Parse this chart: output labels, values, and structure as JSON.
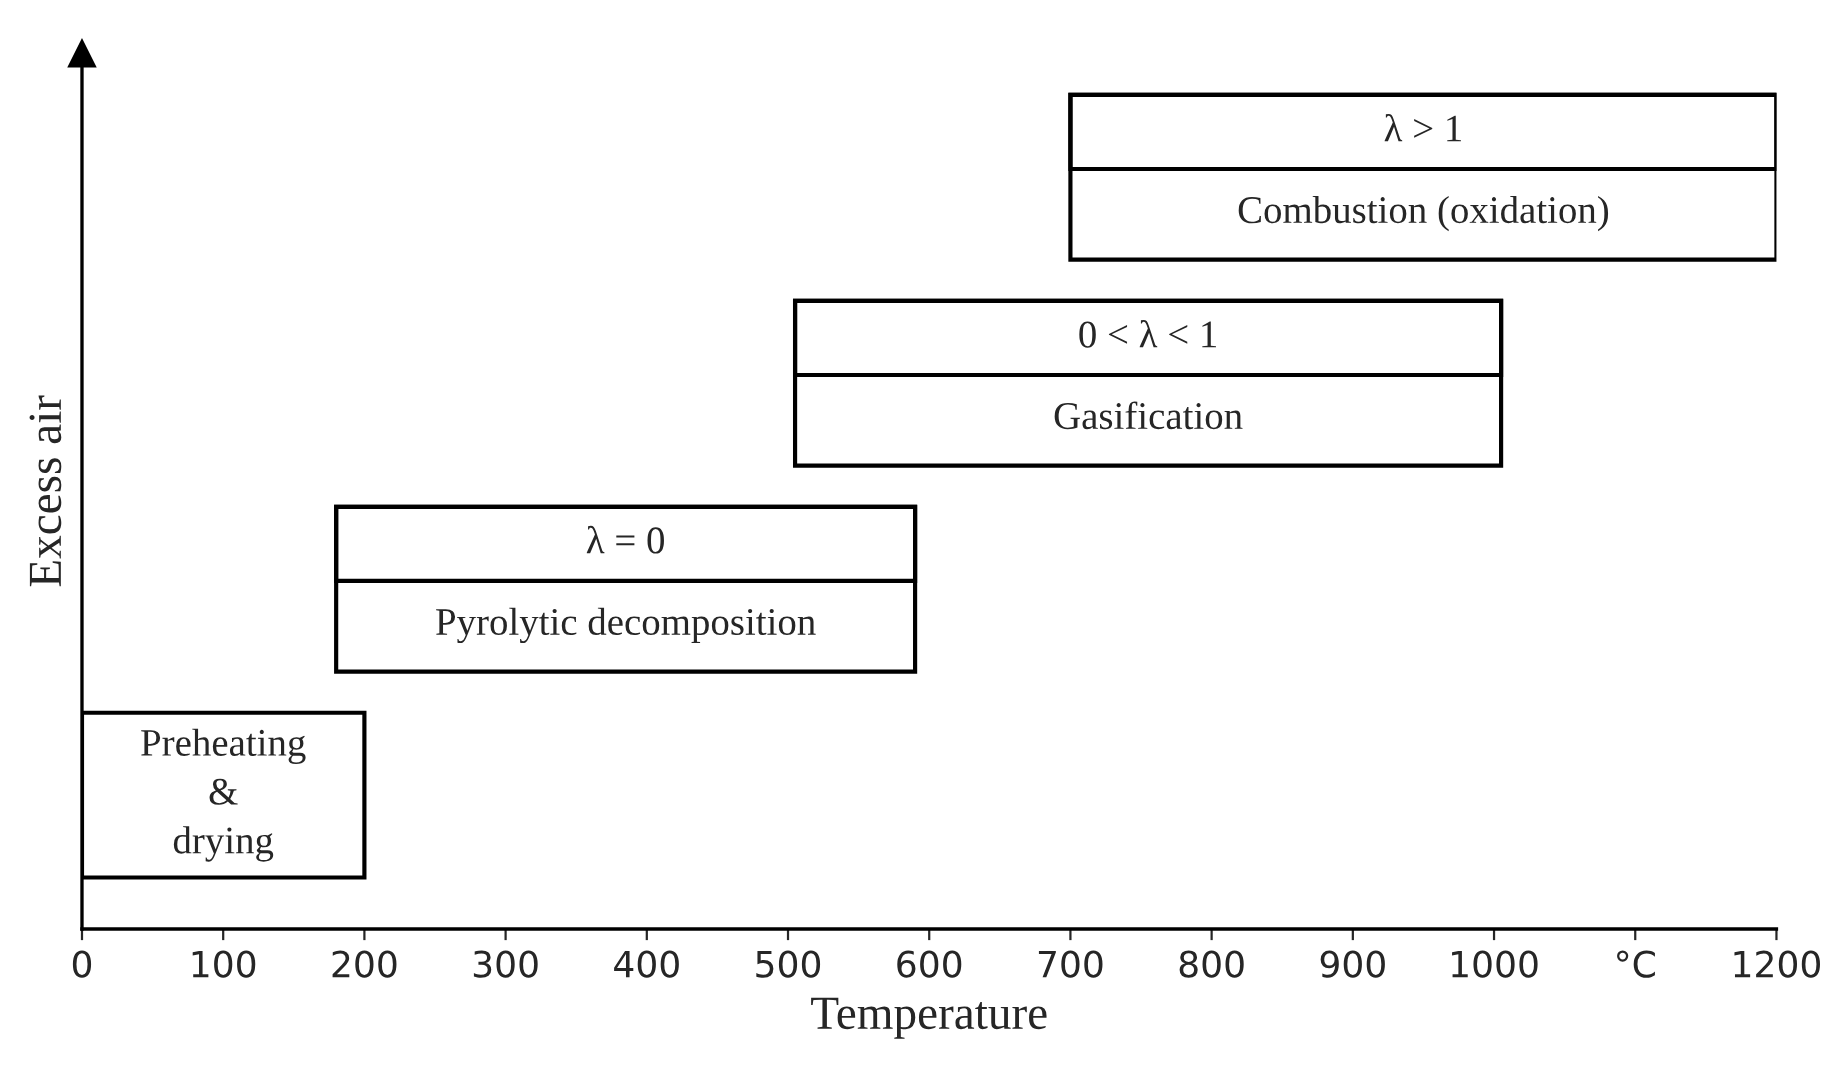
{
  "chart_data": {
    "type": "bar",
    "orientation": "horizontal",
    "xlabel": "Temperature",
    "ylabel": "Excess air",
    "categories": [
      "Combustion (oxidation)",
      "Gasification",
      "Pyrolytic decomposition",
      "Preheating\n&\ndrying"
    ],
    "base": [
      700,
      505,
      180,
      0
    ],
    "values": [
      500,
      500,
      410,
      200
    ],
    "color": "#ffffff",
    "xlim": [
      0,
      1200
    ],
    "xticks": [
      0,
      100,
      200,
      300,
      400,
      500,
      600,
      700,
      800,
      900,
      1000,
      {
        "value": 1100,
        "label": "°C"
      },
      1200
    ],
    "tick_labels": "x",
    "grid": false,
    "annotations": [
      "λ > 1",
      "0 < λ < 1",
      "λ = 0"
    ]
  }
}
